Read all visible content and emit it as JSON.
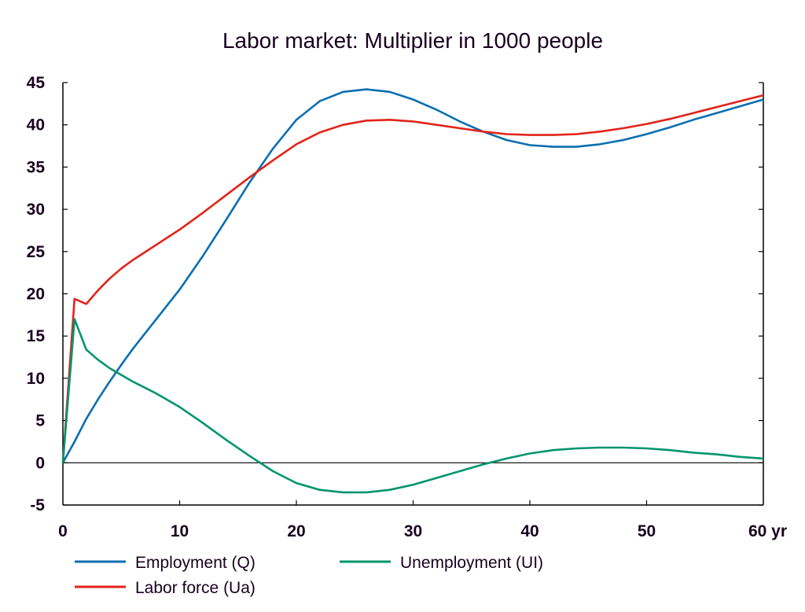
{
  "chart_data": {
    "type": "line",
    "title": "Labor market: Multiplier in 1000 people",
    "xlabel": "",
    "ylabel": "",
    "x_unit_label": "yr",
    "xlim": [
      0,
      60
    ],
    "ylim": [
      -5,
      45
    ],
    "x_ticks": [
      0,
      10,
      20,
      30,
      40,
      50,
      60
    ],
    "x_tick_labels": [
      "0",
      "10",
      "20",
      "30",
      "40",
      "50",
      "60 yr"
    ],
    "y_ticks": [
      45,
      40,
      35,
      30,
      25,
      20,
      15,
      10,
      5,
      0,
      -5
    ],
    "y_tick_labels": [
      "45",
      "40",
      "35",
      "30",
      "25",
      "20",
      "15",
      "10",
      "5",
      "0",
      "-5"
    ],
    "zero_line": true,
    "grid": false,
    "legend_position": "bottom-left",
    "series": [
      {
        "name": "Employment (Q)",
        "color": "#0a6fb0",
        "x": [
          0,
          1,
          2,
          3,
          4,
          5,
          6,
          8,
          10,
          12,
          14,
          16,
          18,
          20,
          22,
          24,
          26,
          28,
          30,
          32,
          34,
          36,
          38,
          40,
          42,
          44,
          46,
          48,
          50,
          52,
          54,
          56,
          58,
          60
        ],
        "y": [
          0,
          2.5,
          5.2,
          7.5,
          9.6,
          11.6,
          13.5,
          17.0,
          20.5,
          24.5,
          28.8,
          33.2,
          37.2,
          40.6,
          42.8,
          43.9,
          44.2,
          43.9,
          43.0,
          41.8,
          40.4,
          39.2,
          38.2,
          37.6,
          37.4,
          37.4,
          37.7,
          38.2,
          38.9,
          39.7,
          40.6,
          41.4,
          42.2,
          43.0
        ]
      },
      {
        "name": "Labor force (Ua)",
        "color": "#e2231a",
        "x": [
          0,
          1,
          2,
          3,
          4,
          5,
          6,
          8,
          10,
          12,
          14,
          16,
          18,
          20,
          22,
          24,
          26,
          28,
          30,
          32,
          34,
          36,
          38,
          40,
          42,
          44,
          46,
          48,
          50,
          52,
          54,
          56,
          58,
          60
        ],
        "y": [
          0,
          19.4,
          18.8,
          20.4,
          21.8,
          23.0,
          24.0,
          25.8,
          27.6,
          29.6,
          31.7,
          33.8,
          35.8,
          37.7,
          39.1,
          40.0,
          40.5,
          40.6,
          40.4,
          40.0,
          39.6,
          39.2,
          38.9,
          38.8,
          38.8,
          38.9,
          39.2,
          39.6,
          40.1,
          40.7,
          41.4,
          42.1,
          42.8,
          43.5
        ]
      },
      {
        "name": "Unemployment (UI)",
        "color": "#00956e",
        "x": [
          0,
          1,
          2,
          3,
          4,
          5,
          6,
          8,
          10,
          12,
          14,
          16,
          18,
          20,
          22,
          24,
          26,
          28,
          30,
          32,
          34,
          36,
          38,
          40,
          42,
          44,
          46,
          48,
          50,
          52,
          54,
          56,
          58,
          60
        ],
        "y": [
          0,
          17.0,
          13.4,
          12.2,
          11.2,
          10.4,
          9.6,
          8.2,
          6.6,
          4.7,
          2.7,
          0.8,
          -1.0,
          -2.4,
          -3.2,
          -3.5,
          -3.5,
          -3.2,
          -2.6,
          -1.8,
          -1.0,
          -0.2,
          0.5,
          1.1,
          1.5,
          1.7,
          1.8,
          1.8,
          1.7,
          1.5,
          1.2,
          1.0,
          0.7,
          0.5
        ]
      }
    ]
  }
}
